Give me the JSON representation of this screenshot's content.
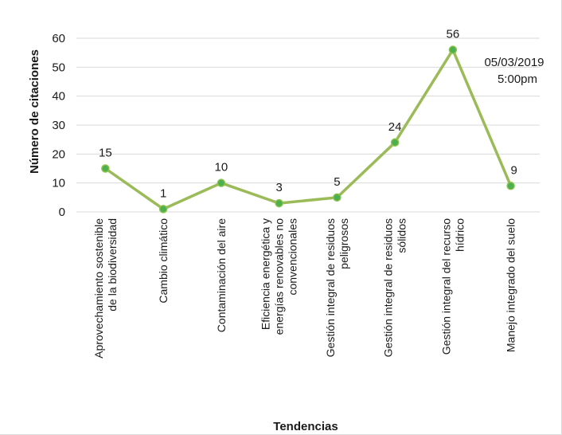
{
  "chart_data": {
    "type": "line",
    "title": "",
    "xlabel": "Tendencias",
    "ylabel": "Número de citaciones",
    "ylim": [
      0,
      60
    ],
    "yticks": [
      0,
      10,
      20,
      30,
      40,
      50,
      60
    ],
    "grid": true,
    "categories": [
      [
        "Aprovechamiento sostenible",
        "de la biodiversidad"
      ],
      [
        "Cambio climático"
      ],
      [
        "Contaminación del aire"
      ],
      [
        "Eficiencia energética y",
        "energías renovables no",
        "convencionales"
      ],
      [
        "Gestión integral de residuos",
        "peligrosos"
      ],
      [
        "Gestión integral de residuos",
        "sólidos"
      ],
      [
        "Gestión integral del recurso",
        "hídrico"
      ],
      [
        "Manejo integrado del suelo"
      ]
    ],
    "series": [
      {
        "values": [
          15,
          1,
          10,
          3,
          5,
          24,
          56,
          9
        ]
      }
    ],
    "annotation": [
      "05/03/2019",
      "5:00pm"
    ],
    "colors": {
      "line": "#9bbb59",
      "marker_fill": "#4caf50",
      "marker_stroke": "#8bc34a",
      "grid": "#d9d9d9"
    }
  }
}
